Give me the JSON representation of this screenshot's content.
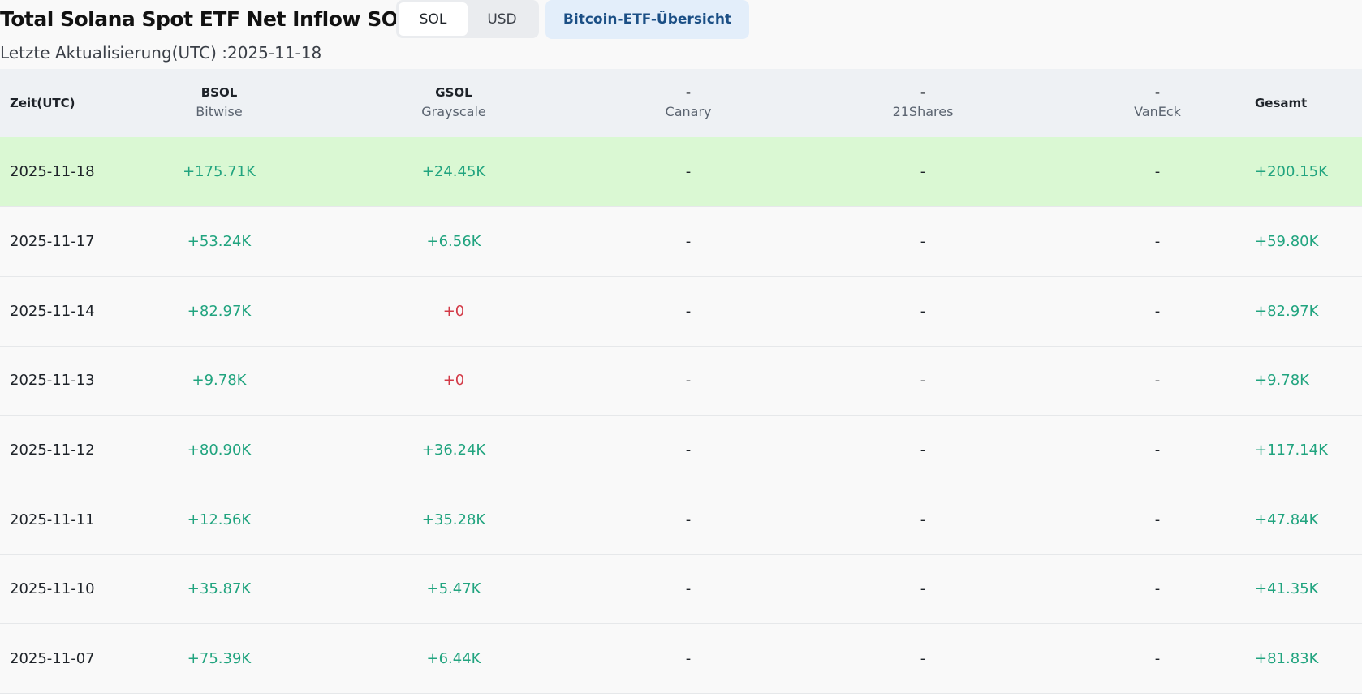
{
  "header": {
    "title": "Total Solana Spot ETF Net Inflow SOL",
    "unit_toggle": [
      "SOL",
      "USD"
    ],
    "active_unit": "SOL",
    "overview_button": "Bitcoin-ETF-Übersicht",
    "last_updated": "Letzte Aktualisierung(UTC) :2025-11-18"
  },
  "table": {
    "date_header": "Zeit(UTC)",
    "total_header": "Gesamt",
    "funds": [
      {
        "symbol": "BSOL",
        "issuer": "Bitwise"
      },
      {
        "symbol": "GSOL",
        "issuer": "Grayscale"
      },
      {
        "symbol": "-",
        "issuer": "Canary"
      },
      {
        "symbol": "-",
        "issuer": "21Shares"
      },
      {
        "symbol": "-",
        "issuer": "VanEck"
      }
    ],
    "rows": [
      {
        "date": "2025-11-18",
        "values": [
          "+175.71K",
          "+24.45K",
          "-",
          "-",
          "-"
        ],
        "total": "+200.15K",
        "highlight": true
      },
      {
        "date": "2025-11-17",
        "values": [
          "+53.24K",
          "+6.56K",
          "-",
          "-",
          "-"
        ],
        "total": "+59.80K"
      },
      {
        "date": "2025-11-14",
        "values": [
          "+82.97K",
          "+0",
          "-",
          "-",
          "-"
        ],
        "total": "+82.97K"
      },
      {
        "date": "2025-11-13",
        "values": [
          "+9.78K",
          "+0",
          "-",
          "-",
          "-"
        ],
        "total": "+9.78K"
      },
      {
        "date": "2025-11-12",
        "values": [
          "+80.90K",
          "+36.24K",
          "-",
          "-",
          "-"
        ],
        "total": "+117.14K"
      },
      {
        "date": "2025-11-11",
        "values": [
          "+12.56K",
          "+35.28K",
          "-",
          "-",
          "-"
        ],
        "total": "+47.84K"
      },
      {
        "date": "2025-11-10",
        "values": [
          "+35.87K",
          "+5.47K",
          "-",
          "-",
          "-"
        ],
        "total": "+41.35K"
      },
      {
        "date": "2025-11-07",
        "values": [
          "+75.39K",
          "+6.44K",
          "-",
          "-",
          "-"
        ],
        "total": "+81.83K"
      }
    ]
  },
  "colors": {
    "positive": "#21a47f",
    "zero": "#d33a47",
    "highlight_row": "#daf8d3",
    "header_bg": "#eef1f4",
    "overview_bg": "#e3eefa"
  }
}
